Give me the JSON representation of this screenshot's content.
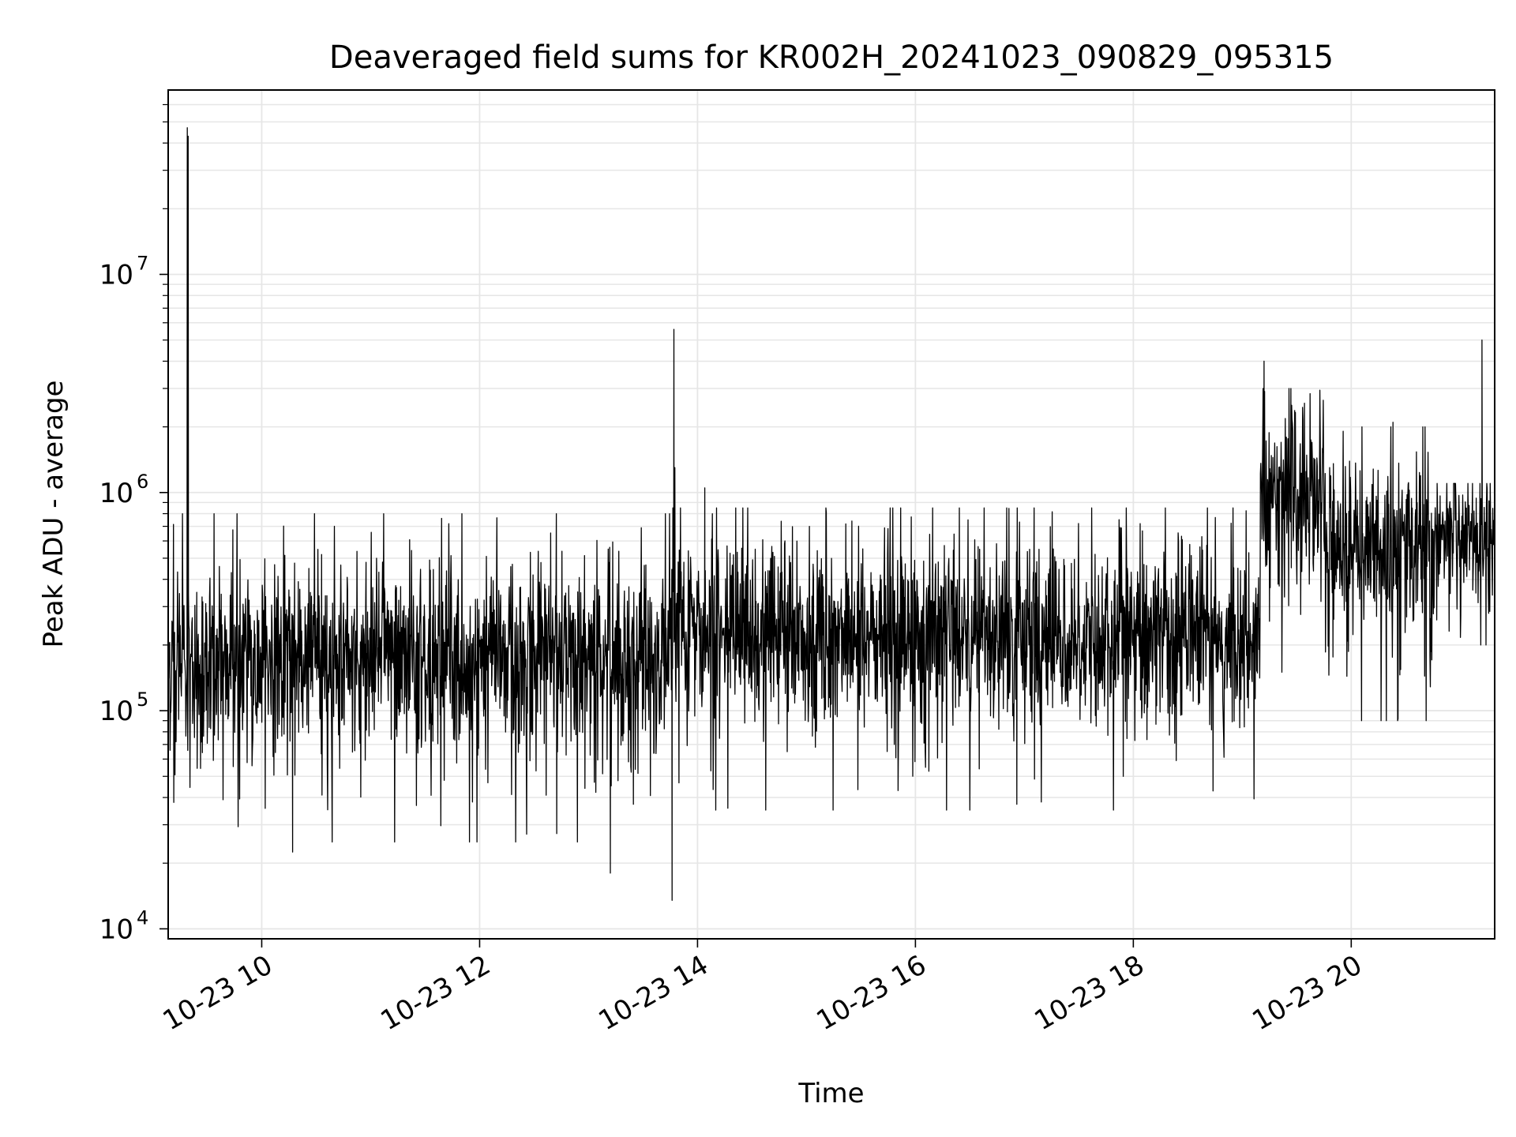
{
  "chart_data": {
    "type": "line",
    "title": "Deaveraged field sums for KR002H_20241023_090829_095315",
    "xlabel": "Time",
    "ylabel": "Peak ADU - average",
    "x_axis": {
      "type": "time",
      "range": [
        "2024-10-23T09:08:29",
        "2024-10-23T21:19:00"
      ],
      "ticks": [
        {
          "value": "2024-10-23T10:00",
          "label": "10-23 10"
        },
        {
          "value": "2024-10-23T12:00",
          "label": "10-23 12"
        },
        {
          "value": "2024-10-23T14:00",
          "label": "10-23 14"
        },
        {
          "value": "2024-10-23T16:00",
          "label": "10-23 16"
        },
        {
          "value": "2024-10-23T18:00",
          "label": "10-23 18"
        },
        {
          "value": "2024-10-23T20:00",
          "label": "10-23 20"
        }
      ]
    },
    "y_axis": {
      "scale": "log",
      "range": [
        9000,
        70000000
      ],
      "ticks": [
        {
          "value": 10000,
          "base": "10",
          "exp": "4"
        },
        {
          "value": 100000,
          "base": "10",
          "exp": "5"
        },
        {
          "value": 1000000,
          "base": "10",
          "exp": "6"
        },
        {
          "value": 10000000,
          "base": "10",
          "exp": "7"
        }
      ]
    },
    "grid": true,
    "line_color": "#000000",
    "grid_color": "#e6e6e6",
    "series": [
      {
        "segments": [
          {
            "start": "2024-10-23T09:08:29",
            "end": "2024-10-23T13:45:00",
            "median": 170000,
            "spread_dex": 0.2,
            "low": 25000,
            "high": 800000
          },
          {
            "start": "2024-10-23T13:45:00",
            "end": "2024-10-23T19:10:00",
            "median": 220000,
            "spread_dex": 0.2,
            "low": 35000,
            "high": 850000
          },
          {
            "start": "2024-10-23T19:10:00",
            "end": "2024-10-23T19:45:00",
            "median": 1000000,
            "spread_dex": 0.2,
            "low": 150000,
            "high": 3000000
          },
          {
            "start": "2024-10-23T19:45:00",
            "end": "2024-10-23T20:45:00",
            "median": 550000,
            "spread_dex": 0.2,
            "low": 90000,
            "high": 2000000
          },
          {
            "start": "2024-10-23T20:45:00",
            "end": "2024-10-23T21:19:00",
            "median": 600000,
            "spread_dex": 0.16,
            "low": 200000,
            "high": 1100000
          }
        ],
        "peaks": [
          {
            "x": "2024-10-23T09:19:00",
            "y": 47000000
          },
          {
            "x": "2024-10-23T09:19:30",
            "y": 43000000
          },
          {
            "x": "2024-10-23T13:47:00",
            "y": 5600000
          },
          {
            "x": "2024-10-23T13:47:30",
            "y": 1300000
          },
          {
            "x": "2024-10-23T14:04:00",
            "y": 1050000
          },
          {
            "x": "2024-10-23T19:12:00",
            "y": 4000000
          },
          {
            "x": "2024-10-23T21:12:00",
            "y": 5000000
          },
          {
            "x": "2024-10-23T20:23:00",
            "y": 2100000
          }
        ],
        "dips": [
          {
            "x": "2024-10-23T13:46:00",
            "y": 13500
          },
          {
            "x": "2024-10-23T13:12:00",
            "y": 18000
          },
          {
            "x": "2024-10-23T10:17:00",
            "y": 22500
          }
        ]
      }
    ]
  }
}
